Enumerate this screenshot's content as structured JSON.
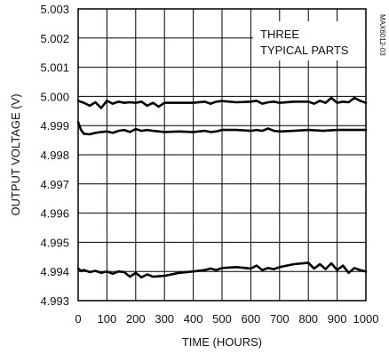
{
  "chart_data": {
    "type": "line",
    "title": "",
    "xlabel": "TIME (HOURS)",
    "ylabel": "OUTPUT VOLTAGE (V)",
    "xlim": [
      0,
      1000
    ],
    "ylim": [
      4.993,
      5.003
    ],
    "x_ticks": [
      "0",
      "100",
      "200",
      "300",
      "400",
      "500",
      "600",
      "700",
      "800",
      "900",
      "1000"
    ],
    "y_ticks": [
      "4.993",
      "4.994",
      "4.995",
      "4.996",
      "4.997",
      "4.998",
      "4.999",
      "5.000",
      "5.001",
      "5.002",
      "5.003"
    ],
    "grid": true,
    "annotation_lines": [
      "THREE",
      "TYPICAL PARTS"
    ],
    "figure_id": "MAX6012-03",
    "series": [
      {
        "x": [
          0,
          20,
          40,
          60,
          80,
          100,
          120,
          140,
          160,
          180,
          200,
          220,
          240,
          260,
          280,
          300,
          350,
          400,
          440,
          460,
          480,
          500,
          550,
          600,
          620,
          640,
          660,
          680,
          700,
          750,
          800,
          820,
          840,
          860,
          880,
          900,
          920,
          940,
          960,
          980,
          1000
        ],
        "values": [
          4.99985,
          4.99978,
          4.99968,
          4.9998,
          4.9996,
          4.99985,
          4.99975,
          4.99982,
          4.99978,
          4.9998,
          4.99978,
          4.99982,
          4.99968,
          4.99978,
          4.99965,
          4.99978,
          4.99978,
          4.99978,
          4.99982,
          4.99975,
          4.99982,
          4.99984,
          4.9998,
          4.99982,
          4.99985,
          4.99975,
          4.9998,
          4.99982,
          4.99978,
          4.99982,
          4.99982,
          4.99975,
          4.99985,
          4.99978,
          4.99995,
          4.99978,
          4.99982,
          4.9998,
          4.99995,
          4.99985,
          4.99978
        ]
      },
      {
        "x": [
          0,
          10,
          20,
          40,
          60,
          80,
          100,
          120,
          140,
          160,
          180,
          200,
          220,
          240,
          260,
          300,
          350,
          400,
          440,
          460,
          480,
          500,
          550,
          600,
          620,
          640,
          660,
          680,
          700,
          750,
          800,
          850,
          900,
          950,
          1000
        ],
        "values": [
          4.99912,
          4.99885,
          4.99872,
          4.9987,
          4.99875,
          4.99878,
          4.9988,
          4.99875,
          4.99882,
          4.99885,
          4.99878,
          4.99888,
          4.99882,
          4.99885,
          4.99882,
          4.99878,
          4.9988,
          4.99878,
          4.99882,
          4.99878,
          4.9988,
          4.99885,
          4.99885,
          4.99882,
          4.99885,
          4.99882,
          4.9989,
          4.99882,
          4.9988,
          4.99882,
          4.99885,
          4.99882,
          4.99885,
          4.99885,
          4.99885
        ]
      },
      {
        "x": [
          0,
          10,
          20,
          40,
          60,
          80,
          100,
          120,
          140,
          160,
          180,
          200,
          220,
          240,
          260,
          300,
          350,
          400,
          440,
          460,
          480,
          500,
          550,
          600,
          620,
          640,
          660,
          680,
          700,
          750,
          800,
          820,
          840,
          860,
          880,
          900,
          920,
          940,
          960,
          980,
          1000
        ],
        "values": [
          4.9941,
          4.99402,
          4.99405,
          4.99398,
          4.99402,
          4.99395,
          4.994,
          4.99392,
          4.994,
          4.99398,
          4.99382,
          4.99395,
          4.9938,
          4.9939,
          4.99382,
          4.99385,
          4.99395,
          4.994,
          4.99405,
          4.9941,
          4.99405,
          4.99412,
          4.99415,
          4.9941,
          4.9942,
          4.99405,
          4.99412,
          4.99408,
          4.99415,
          4.99425,
          4.9943,
          4.9941,
          4.99425,
          4.99408,
          4.99428,
          4.99405,
          4.9942,
          4.99395,
          4.99412,
          4.99405,
          4.994
        ]
      }
    ]
  }
}
